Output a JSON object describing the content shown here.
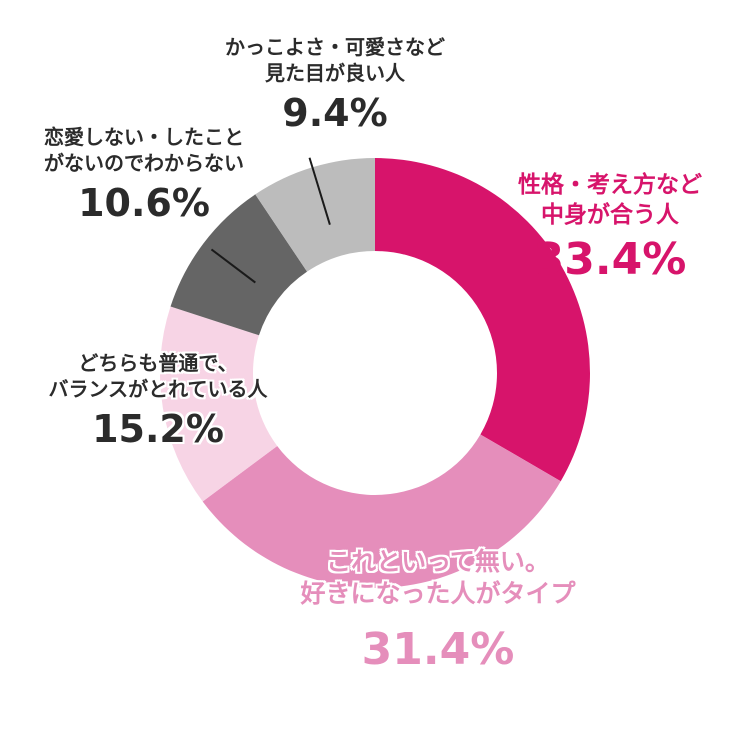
{
  "chart_data": {
    "type": "pie",
    "donut": true,
    "title": "",
    "slices": [
      {
        "label_lines": [
          "性格・考え方など",
          "中身が合う人"
        ],
        "value": 33.4,
        "value_text": "33.4%",
        "color": "#d7146b",
        "label_color": "#d7146b"
      },
      {
        "label_lines": [
          "これといって無い。",
          "好きになった人がタイプ"
        ],
        "value": 31.4,
        "value_text": "31.4%",
        "color": "#e58ebb",
        "label_color": "#e58ebb"
      },
      {
        "label_lines": [
          "どちらも普通で、",
          "バランスがとれている人"
        ],
        "value": 15.2,
        "value_text": "15.2%",
        "color": "#f7d4e5",
        "label_color": "#2b2b2b"
      },
      {
        "label_lines": [
          "恋愛しない・したこと",
          "がないのでわからない"
        ],
        "value": 10.6,
        "value_text": "10.6%",
        "color": "#656565",
        "label_color": "#2b2b2b"
      },
      {
        "label_lines": [
          "かっこよさ・可愛さなど",
          "見た目が良い人"
        ],
        "value": 9.4,
        "value_text": "9.4%",
        "color": "#bcbcbc",
        "label_color": "#2b2b2b"
      }
    ]
  }
}
